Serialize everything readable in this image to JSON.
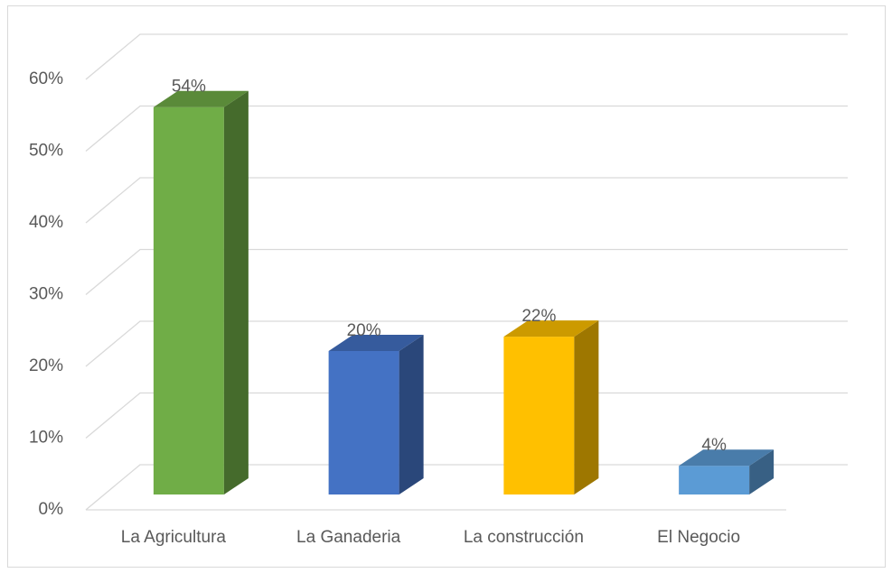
{
  "chart_data": {
    "type": "bar3d",
    "categories": [
      "La Agricultura",
      "La Ganaderia",
      "La construcción",
      "El Negocio"
    ],
    "values": [
      54,
      20,
      22,
      4
    ],
    "value_labels": [
      "54%",
      "20%",
      "22%",
      "4%"
    ],
    "colors": [
      "#70ad47",
      "#4472c4",
      "#ffc000",
      "#5b9bd5"
    ],
    "ylim": [
      0,
      60
    ],
    "yticks": [
      {
        "value": 0,
        "label": "0%"
      },
      {
        "value": 10,
        "label": "10%"
      },
      {
        "value": 20,
        "label": "20%"
      },
      {
        "value": 30,
        "label": "30%"
      },
      {
        "value": 40,
        "label": "40%"
      },
      {
        "value": 50,
        "label": "50%"
      },
      {
        "value": 60,
        "label": "60%"
      }
    ],
    "grid": true
  }
}
